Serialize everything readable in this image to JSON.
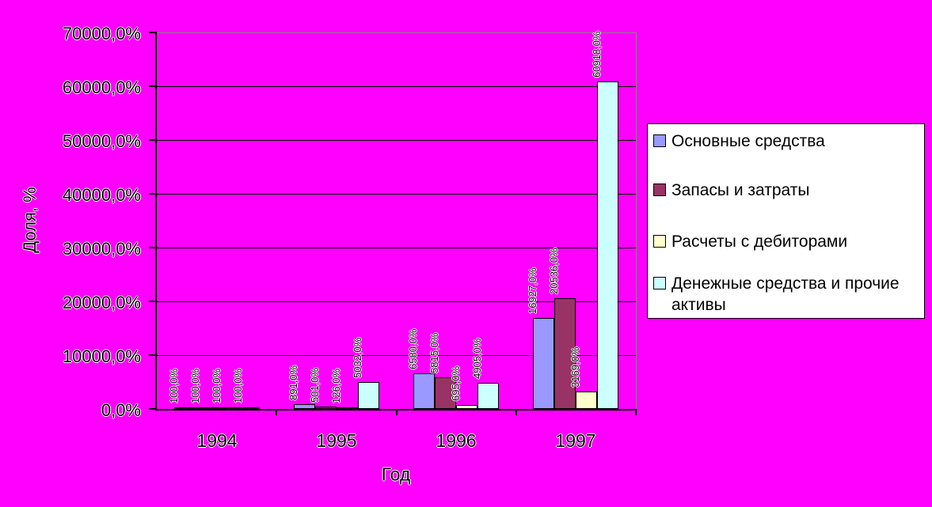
{
  "page": {
    "background": "#FF00FF"
  },
  "chart_data": {
    "type": "bar",
    "title": "",
    "xlabel": "Год",
    "ylabel": "Доля, %",
    "categories": [
      "1994",
      "1995",
      "1996",
      "1997"
    ],
    "series": [
      {
        "name": "Основные средства",
        "color": "#9999FF",
        "values": [
          100,
          891,
          6580,
          16927
        ],
        "labels": [
          "100,0%",
          "891,0%",
          "6580,0%",
          "16927,0%"
        ]
      },
      {
        "name": "Запасы и затраты",
        "color": "#993366",
        "values": [
          100,
          501,
          5815,
          20536
        ],
        "labels": [
          "100,0%",
          "501,0%",
          "5815,0%",
          "20536,0%"
        ]
      },
      {
        "name": "Расчеты с дебиторами",
        "color": "#FFFFCC",
        "values": [
          100,
          126,
          695,
          3169
        ],
        "labels": [
          "100,0%",
          "126,0%",
          "695,0%",
          "3169,0%"
        ]
      },
      {
        "name": "Денежные средства и прочие активы",
        "color": "#CCFFFF",
        "values": [
          100,
          5032,
          4905,
          60918
        ],
        "labels": [
          "100,0%",
          "5032,0%",
          "4905,0%",
          "60918,0%"
        ]
      }
    ],
    "ylim": [
      0,
      70000
    ],
    "ytick_step": 10000,
    "ytick_labels": [
      "0,0%",
      "10000,0%",
      "20000,0%",
      "30000,0%",
      "40000,0%",
      "50000,0%",
      "60000,0%",
      "70000,0%"
    ],
    "grid": true,
    "legend_position": "right",
    "colors": {
      "background": "#FF00FF",
      "gridline": "#000000",
      "axis_line": "#000000",
      "plot_border": "#848284",
      "legend_background": "#FFFFFF",
      "legend_border": "#000000",
      "text": "#000000"
    }
  }
}
